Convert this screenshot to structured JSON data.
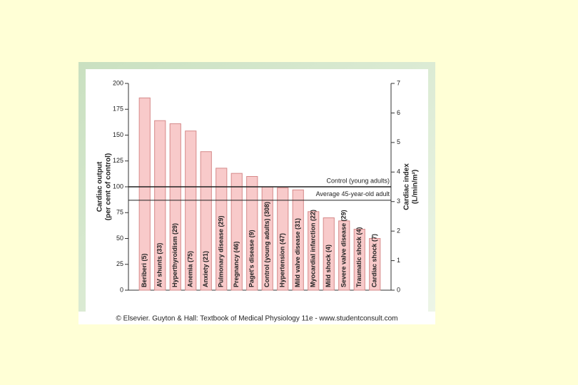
{
  "chart_data": {
    "type": "bar",
    "categories": [
      "Beriberi (5)",
      "AV shunts (33)",
      "Hyperthyroidism (29)",
      "Anemia (75)",
      "Anxiety (21)",
      "Pulmonary disease (29)",
      "Pregnancy (46)",
      "Paget's disease (9)",
      "Control (young adults) (308)",
      "Hypertension (47)",
      "Mild valve disease (31)",
      "Myocardial infarction (22)",
      "Mild shock (4)",
      "Severe valve disease (29)",
      "Traumatic shock (4)",
      "Cardiac shock (7)"
    ],
    "values": [
      186,
      164,
      161,
      154,
      134,
      118,
      113,
      110,
      100,
      99,
      97,
      76,
      70,
      67,
      59,
      50
    ],
    "color": "#f8caca",
    "ylabel": [
      "Cardiac output",
      "(per cent of control)"
    ],
    "y2label": [
      "Cardiac index",
      "(L/min/m²)"
    ],
    "ylim": [
      0,
      200
    ],
    "yticks": [
      0,
      25,
      50,
      75,
      100,
      125,
      150,
      175,
      200
    ],
    "y2lim": [
      0,
      7
    ],
    "y2ticks": [
      0,
      1,
      2,
      3,
      4,
      5,
      6,
      7
    ],
    "reference_lines": [
      {
        "label": "Control (young adults)",
        "value": 100
      },
      {
        "label": "Average 45-year-old adult",
        "value": 87
      }
    ],
    "source": "© Elsevier. Guyton & Hall: Textbook of Medical Physiology 11e - www.studentconsult.com"
  }
}
